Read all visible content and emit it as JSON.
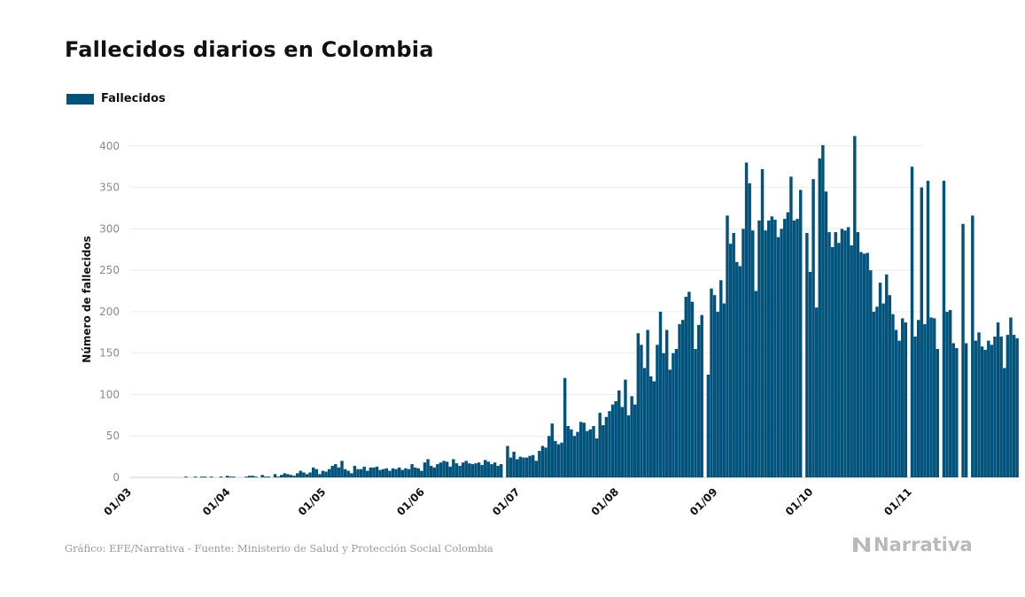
{
  "header": {
    "title": "Fallecidos diarios en Colombia"
  },
  "legend": {
    "label": "Fallecidos",
    "color": "#02537c"
  },
  "footer": {
    "credit": "Gráfico: EFE/Narrativa - Fuente: Ministerio de Salud y Protección Social Colombia",
    "brand": "Narrativa"
  },
  "chart_data": {
    "type": "bar",
    "title": "Fallecidos diarios en Colombia",
    "ylabel": "Número de fallecidos",
    "xlabel": "",
    "ylim": [
      0,
      420
    ],
    "yticks": [
      0,
      50,
      100,
      150,
      200,
      250,
      300,
      350,
      400
    ],
    "xtick_labels": [
      "01/03",
      "01/04",
      "01/05",
      "01/06",
      "01/07",
      "01/08",
      "01/09",
      "01/10",
      "01/11"
    ],
    "grid": true,
    "legend_position": "top-left",
    "series": [
      {
        "name": "Fallecidos",
        "color": "#02537c",
        "start_date": "2020-03-16",
        "values": [
          0,
          0,
          1,
          0,
          0,
          1,
          0,
          1,
          1,
          0,
          1,
          0,
          0,
          1,
          0,
          2,
          1,
          1,
          0,
          0,
          0,
          1,
          2,
          2,
          1,
          0,
          3,
          1,
          1,
          0,
          4,
          1,
          3,
          5,
          4,
          3,
          2,
          5,
          8,
          6,
          4,
          6,
          12,
          10,
          4,
          8,
          7,
          10,
          14,
          16,
          12,
          20,
          10,
          8,
          5,
          14,
          10,
          10,
          13,
          8,
          12,
          12,
          13,
          9,
          10,
          11,
          8,
          11,
          10,
          12,
          9,
          11,
          10,
          16,
          12,
          11,
          8,
          18,
          22,
          14,
          12,
          16,
          18,
          20,
          19,
          13,
          22,
          17,
          14,
          18,
          20,
          17,
          16,
          17,
          18,
          15,
          21,
          19,
          16,
          18,
          14,
          16,
          0,
          38,
          24,
          31,
          22,
          25,
          24,
          24,
          26,
          27,
          20,
          32,
          38,
          36,
          50,
          65,
          44,
          40,
          42,
          120,
          62,
          58,
          50,
          55,
          67,
          66,
          56,
          58,
          62,
          47,
          78,
          63,
          73,
          80,
          88,
          92,
          105,
          85,
          118,
          75,
          98,
          88,
          174,
          160,
          132,
          178,
          122,
          116,
          160,
          200,
          150,
          178,
          130,
          150,
          155,
          185,
          190,
          218,
          224,
          212,
          155,
          184,
          196,
          0,
          124,
          228,
          220,
          200,
          238,
          210,
          316,
          282,
          295,
          260,
          255,
          300,
          380,
          355,
          298,
          225,
          310,
          372,
          298,
          310,
          315,
          311,
          290,
          300,
          312,
          320,
          363,
          310,
          312,
          347,
          0,
          295,
          248,
          360,
          205,
          385,
          401,
          345,
          296,
          278,
          296,
          283,
          300,
          298,
          302,
          280,
          412,
          296,
          272,
          270,
          271,
          250,
          200,
          206,
          235,
          210,
          245,
          220,
          197,
          178,
          165,
          192,
          187,
          0,
          375,
          170,
          190,
          350,
          185,
          358,
          193,
          192,
          155,
          0,
          358,
          200,
          202,
          162,
          156,
          0,
          306,
          162,
          0,
          316,
          165,
          175,
          158,
          154,
          165,
          160,
          170,
          187,
          170,
          132,
          172,
          193,
          172,
          168
        ]
      }
    ]
  }
}
